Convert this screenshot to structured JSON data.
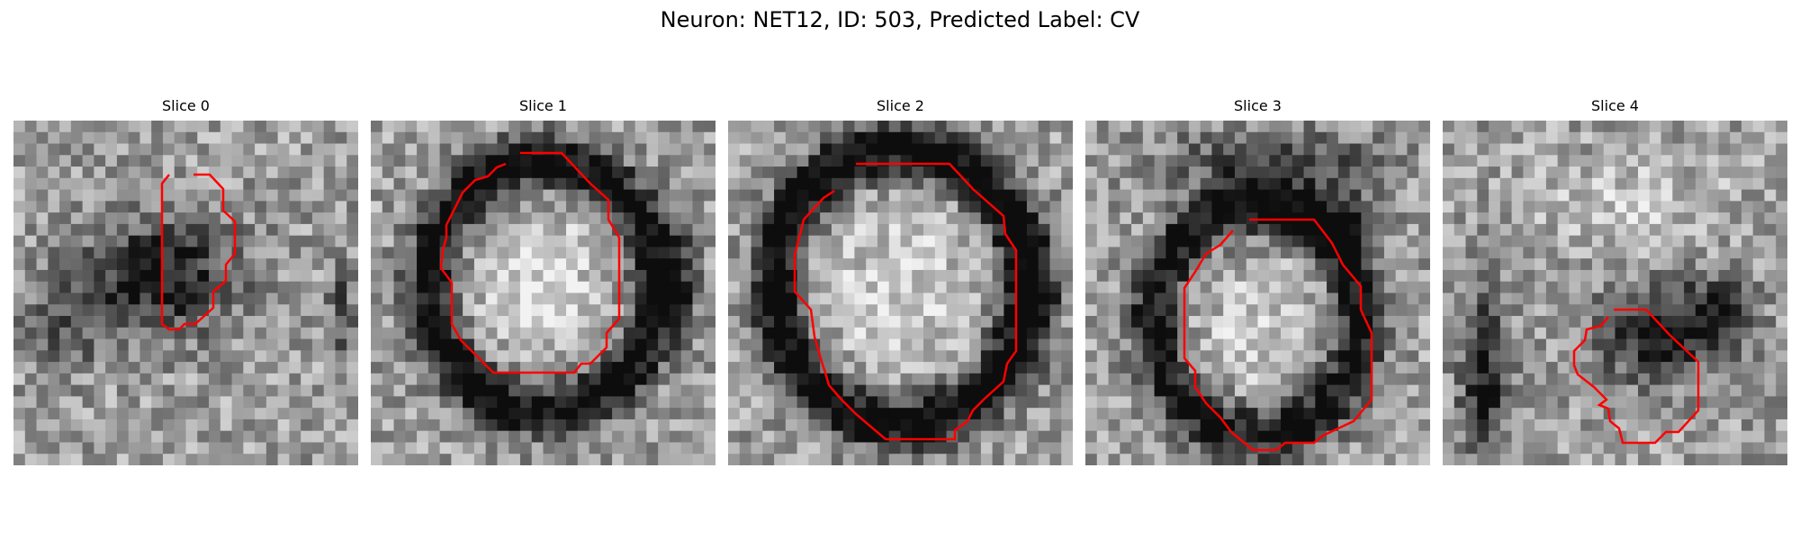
{
  "figure": {
    "title": "Neuron: NET12, ID: 503, Predicted Label: CV",
    "contour_color": "#ff0000"
  },
  "slices": [
    {
      "title": "Slice 0"
    },
    {
      "title": "Slice 1"
    },
    {
      "title": "Slice 2"
    },
    {
      "title": "Slice 3"
    },
    {
      "title": "Slice 4"
    }
  ]
}
